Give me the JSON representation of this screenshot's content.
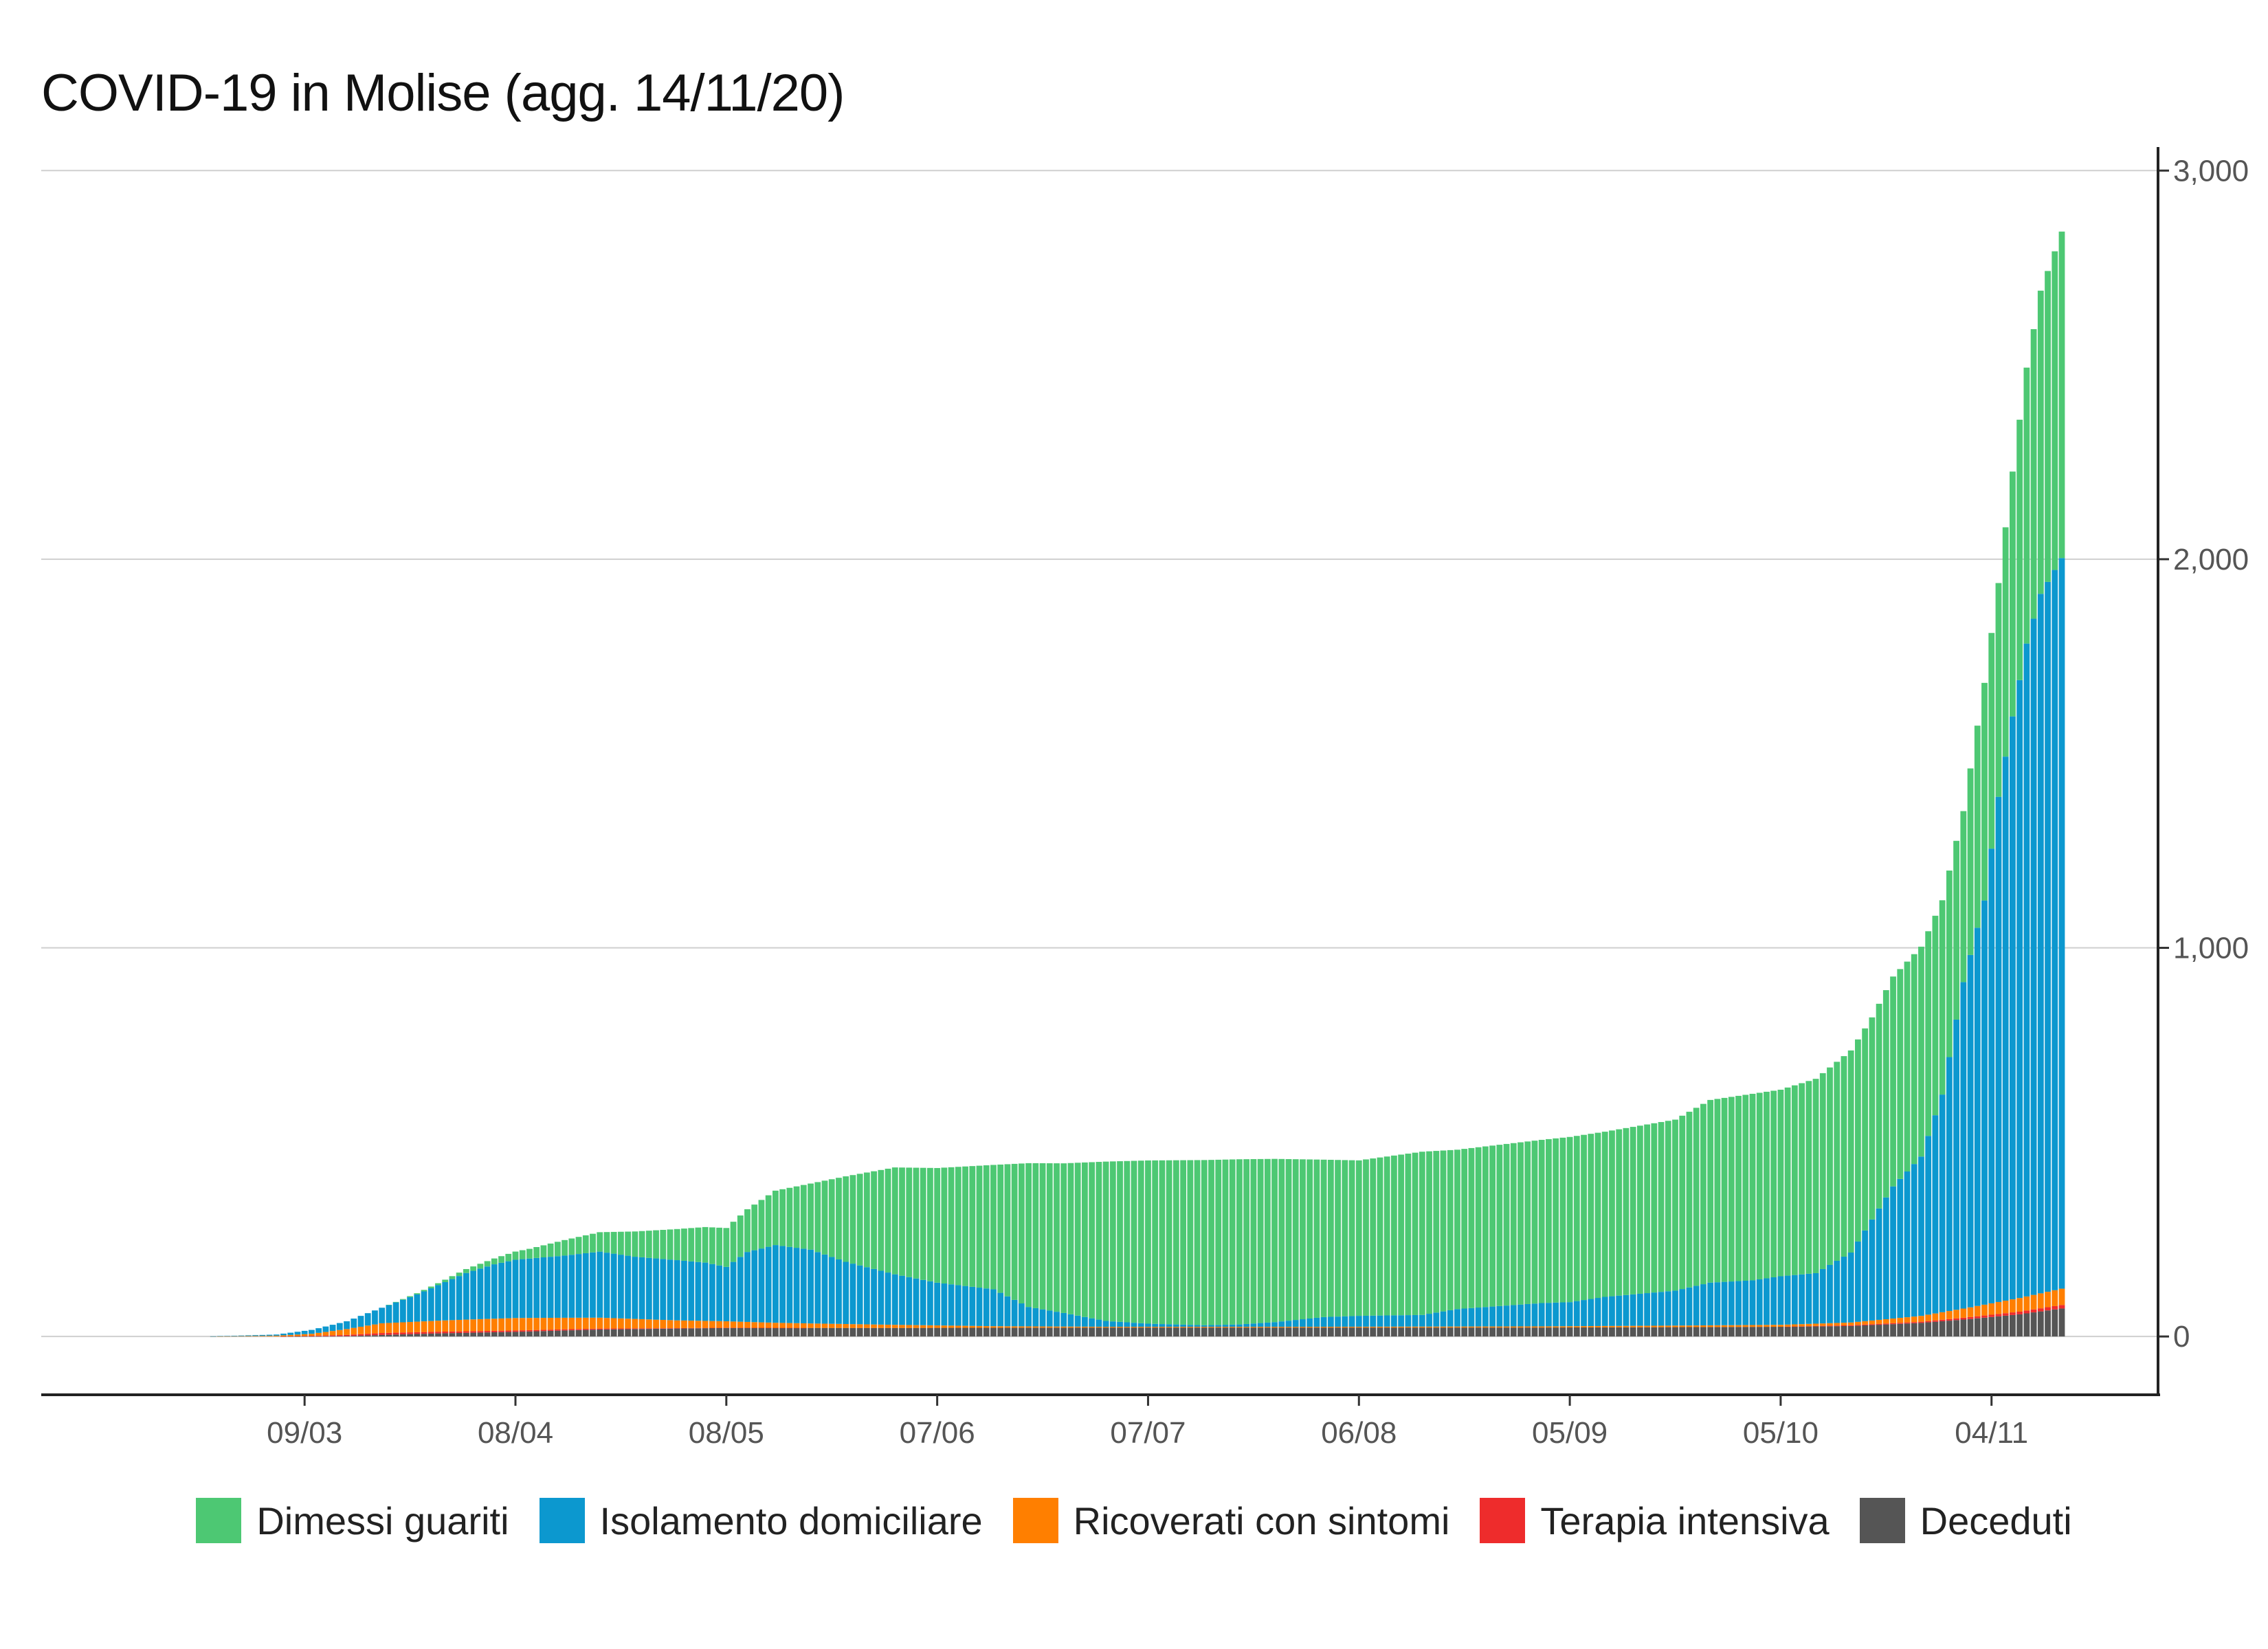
{
  "chart_data": {
    "type": "bar",
    "stacked": true,
    "title": "COVID-19 in Molise (agg. 14/11/20)",
    "xlabel": "",
    "ylabel": "",
    "ylim": [
      -150,
      3050
    ],
    "yticks": [
      0,
      1000,
      2000,
      3000
    ],
    "ytick_labels": [
      "0",
      "1,000",
      "2,000",
      "3,000"
    ],
    "y_axis_position": "right",
    "grid": "horizontal",
    "legend_position": "bottom",
    "date_start": "2020-02-24",
    "date_end": "2020-11-14",
    "xticks": [
      {
        "date": "2020-03-09",
        "label": "09/03"
      },
      {
        "date": "2020-04-08",
        "label": "08/04"
      },
      {
        "date": "2020-05-08",
        "label": "08/05"
      },
      {
        "date": "2020-06-07",
        "label": "07/06"
      },
      {
        "date": "2020-07-07",
        "label": "07/07"
      },
      {
        "date": "2020-08-06",
        "label": "06/08"
      },
      {
        "date": "2020-09-05",
        "label": "05/09"
      },
      {
        "date": "2020-10-05",
        "label": "05/10"
      },
      {
        "date": "2020-11-04",
        "label": "04/11"
      }
    ],
    "series": [
      {
        "name": "Deceduti",
        "color": "#555555",
        "keypoints": [
          [
            "2020-02-24",
            0
          ],
          [
            "2020-03-05",
            0
          ],
          [
            "2020-03-15",
            1
          ],
          [
            "2020-03-20",
            4
          ],
          [
            "2020-03-28",
            8
          ],
          [
            "2020-04-08",
            12
          ],
          [
            "2020-04-20",
            18
          ],
          [
            "2020-05-08",
            22
          ],
          [
            "2020-06-01",
            22
          ],
          [
            "2020-07-01",
            23
          ],
          [
            "2020-08-01",
            23
          ],
          [
            "2020-09-01",
            23
          ],
          [
            "2020-09-20",
            24
          ],
          [
            "2020-10-05",
            25
          ],
          [
            "2020-10-15",
            27
          ],
          [
            "2020-10-25",
            35
          ],
          [
            "2020-11-01",
            45
          ],
          [
            "2020-11-08",
            57
          ],
          [
            "2020-11-14",
            72
          ]
        ]
      },
      {
        "name": "Terapia intensiva",
        "color": "#ee2c2c",
        "keypoints": [
          [
            "2020-02-24",
            0
          ],
          [
            "2020-03-05",
            0
          ],
          [
            "2020-03-12",
            2
          ],
          [
            "2020-03-20",
            5
          ],
          [
            "2020-04-01",
            4
          ],
          [
            "2020-04-15",
            3
          ],
          [
            "2020-05-01",
            1
          ],
          [
            "2020-05-20",
            0
          ],
          [
            "2020-10-05",
            0
          ],
          [
            "2020-10-15",
            2
          ],
          [
            "2020-10-25",
            3
          ],
          [
            "2020-11-01",
            5
          ],
          [
            "2020-11-08",
            7
          ],
          [
            "2020-11-14",
            9
          ]
        ]
      },
      {
        "name": "Ricoverati con sintomi",
        "color": "#ff7f00",
        "keypoints": [
          [
            "2020-02-24",
            0
          ],
          [
            "2020-03-05",
            2
          ],
          [
            "2020-03-10",
            5
          ],
          [
            "2020-03-15",
            15
          ],
          [
            "2020-03-20",
            25
          ],
          [
            "2020-04-01",
            30
          ],
          [
            "2020-04-08",
            32
          ],
          [
            "2020-04-20",
            28
          ],
          [
            "2020-05-01",
            20
          ],
          [
            "2020-05-15",
            13
          ],
          [
            "2020-06-01",
            8
          ],
          [
            "2020-06-15",
            4
          ],
          [
            "2020-07-01",
            2
          ],
          [
            "2020-08-01",
            2
          ],
          [
            "2020-09-01",
            3
          ],
          [
            "2020-09-20",
            4
          ],
          [
            "2020-10-05",
            5
          ],
          [
            "2020-10-15",
            7
          ],
          [
            "2020-10-25",
            15
          ],
          [
            "2020-11-01",
            25
          ],
          [
            "2020-11-08",
            35
          ],
          [
            "2020-11-14",
            42
          ]
        ]
      },
      {
        "name": "Isolamento domiciliare",
        "color": "#0c98cf",
        "keypoints": [
          [
            "2020-02-24",
            0
          ],
          [
            "2020-03-05",
            3
          ],
          [
            "2020-03-10",
            10
          ],
          [
            "2020-03-15",
            20
          ],
          [
            "2020-03-20",
            40
          ],
          [
            "2020-03-25",
            70
          ],
          [
            "2020-04-01",
            120
          ],
          [
            "2020-04-05",
            140
          ],
          [
            "2020-04-08",
            150
          ],
          [
            "2020-04-15",
            160
          ],
          [
            "2020-04-20",
            170
          ],
          [
            "2020-04-25",
            160
          ],
          [
            "2020-05-01",
            155
          ],
          [
            "2020-05-05",
            150
          ],
          [
            "2020-05-08",
            140
          ],
          [
            "2020-05-11",
            180
          ],
          [
            "2020-05-15",
            200
          ],
          [
            "2020-05-20",
            190
          ],
          [
            "2020-05-25",
            160
          ],
          [
            "2020-06-01",
            130
          ],
          [
            "2020-06-07",
            110
          ],
          [
            "2020-06-15",
            95
          ],
          [
            "2020-06-20",
            50
          ],
          [
            "2020-06-25",
            35
          ],
          [
            "2020-07-01",
            15
          ],
          [
            "2020-07-07",
            8
          ],
          [
            "2020-07-15",
            4
          ],
          [
            "2020-07-20",
            6
          ],
          [
            "2020-07-25",
            12
          ],
          [
            "2020-08-01",
            25
          ],
          [
            "2020-08-06",
            28
          ],
          [
            "2020-08-15",
            30
          ],
          [
            "2020-08-20",
            45
          ],
          [
            "2020-09-01",
            60
          ],
          [
            "2020-09-05",
            62
          ],
          [
            "2020-09-10",
            75
          ],
          [
            "2020-09-20",
            90
          ],
          [
            "2020-09-25",
            110
          ],
          [
            "2020-10-01",
            115
          ],
          [
            "2020-10-05",
            125
          ],
          [
            "2020-10-10",
            130
          ],
          [
            "2020-10-15",
            180
          ],
          [
            "2020-10-18",
            260
          ],
          [
            "2020-10-21",
            340
          ],
          [
            "2020-10-25",
            410
          ],
          [
            "2020-10-28",
            560
          ],
          [
            "2020-10-31",
            840
          ],
          [
            "2020-11-03",
            1040
          ],
          [
            "2020-11-05",
            1300
          ],
          [
            "2020-11-07",
            1500
          ],
          [
            "2020-11-09",
            1680
          ],
          [
            "2020-11-11",
            1800
          ],
          [
            "2020-11-14",
            1880
          ]
        ]
      },
      {
        "name": "Dimessi guariti",
        "color": "#4dc873",
        "keypoints": [
          [
            "2020-02-24",
            0
          ],
          [
            "2020-03-20",
            0
          ],
          [
            "2020-03-28",
            5
          ],
          [
            "2020-04-05",
            15
          ],
          [
            "2020-04-10",
            25
          ],
          [
            "2020-04-15",
            40
          ],
          [
            "2020-04-20",
            50
          ],
          [
            "2020-04-25",
            65
          ],
          [
            "2020-05-01",
            80
          ],
          [
            "2020-05-08",
            100
          ],
          [
            "2020-05-11",
            110
          ],
          [
            "2020-05-15",
            140
          ],
          [
            "2020-05-20",
            170
          ],
          [
            "2020-05-25",
            220
          ],
          [
            "2020-06-01",
            275
          ],
          [
            "2020-06-07",
            295
          ],
          [
            "2020-06-15",
            320
          ],
          [
            "2020-06-20",
            370
          ],
          [
            "2020-06-25",
            385
          ],
          [
            "2020-07-01",
            410
          ],
          [
            "2020-07-07",
            420
          ],
          [
            "2020-07-15",
            425
          ],
          [
            "2020-07-20",
            425
          ],
          [
            "2020-07-25",
            420
          ],
          [
            "2020-08-01",
            405
          ],
          [
            "2020-08-06",
            400
          ],
          [
            "2020-08-15",
            420
          ],
          [
            "2020-08-20",
            410
          ],
          [
            "2020-09-01",
            420
          ],
          [
            "2020-09-05",
            425
          ],
          [
            "2020-09-10",
            425
          ],
          [
            "2020-09-20",
            440
          ],
          [
            "2020-09-25",
            470
          ],
          [
            "2020-10-01",
            480
          ],
          [
            "2020-10-05",
            480
          ],
          [
            "2020-10-10",
            500
          ],
          [
            "2020-10-15",
            520
          ],
          [
            "2020-10-18",
            520
          ],
          [
            "2020-10-21",
            540
          ],
          [
            "2020-10-25",
            540
          ],
          [
            "2020-10-28",
            500
          ],
          [
            "2020-10-31",
            440
          ],
          [
            "2020-11-03",
            560
          ],
          [
            "2020-11-05",
            550
          ],
          [
            "2020-11-07",
            630
          ],
          [
            "2020-11-09",
            710
          ],
          [
            "2020-11-11",
            780
          ],
          [
            "2020-11-14",
            840
          ]
        ]
      }
    ]
  }
}
